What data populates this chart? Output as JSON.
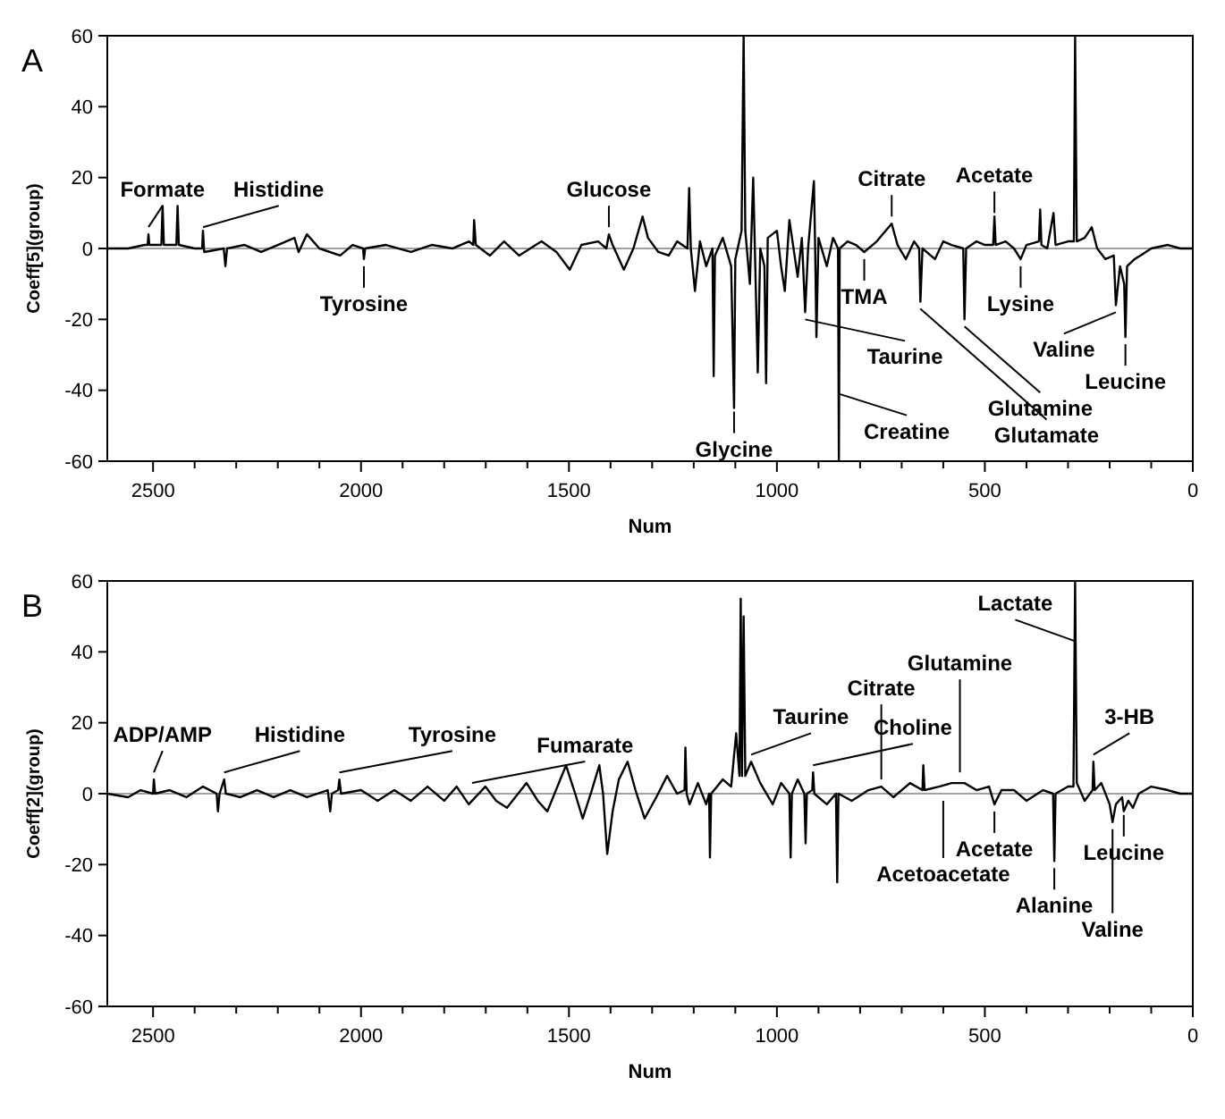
{
  "chart_data": [
    {
      "type": "line",
      "title": "A",
      "xlabel": "Num",
      "ylabel": "Coeff[5](group)",
      "xlim": [
        2610,
        0
      ],
      "ylim": [
        -60,
        60
      ],
      "xticks": [
        2500,
        {
          "value": 2400,
          "label": null
        },
        {
          "value": 2300,
          "label": null
        },
        {
          "value": 2200,
          "label": null
        },
        {
          "value": 2100,
          "label": null
        },
        2000,
        {
          "value": 1900,
          "label": null
        },
        {
          "value": 1800,
          "label": null
        },
        {
          "value": 1700,
          "label": null
        },
        {
          "value": 1600,
          "label": null
        },
        1500,
        {
          "value": 1400,
          "label": null
        },
        {
          "value": 1300,
          "label": null
        },
        {
          "value": 1200,
          "label": null
        },
        {
          "value": 1100,
          "label": null
        },
        1000,
        {
          "value": 900,
          "label": null
        },
        {
          "value": 800,
          "label": null
        },
        {
          "value": 700,
          "label": null
        },
        {
          "value": 600,
          "label": null
        },
        500,
        {
          "value": 400,
          "label": null
        },
        {
          "value": 300,
          "label": null
        },
        {
          "value": 200,
          "label": null
        },
        {
          "value": 100,
          "label": null
        },
        0
      ],
      "yticks": [
        -60,
        -40,
        -20,
        0,
        20,
        40,
        60
      ],
      "grid": false,
      "marker": "none",
      "line_style": "solid",
      "ref_lines": [
        {
          "axis": "y",
          "value": 0,
          "color": "#808080"
        }
      ],
      "series": [
        {
          "color": "#000000",
          "x": [
            2610,
            2560,
            2520,
            2513,
            2511,
            2509,
            2480,
            2477,
            2474,
            2444,
            2441,
            2438,
            2400,
            2382,
            2380,
            2377,
            2330,
            2326,
            2322,
            2280,
            2240,
            2200,
            2160,
            2150,
            2130,
            2100,
            2050,
            2020,
            1995,
            1993,
            1990,
            1940,
            1880,
            1830,
            1780,
            1740,
            1730,
            1728,
            1724,
            1690,
            1656,
            1620,
            1566,
            1530,
            1498,
            1470,
            1430,
            1410,
            1404,
            1395,
            1368,
            1345,
            1323,
            1310,
            1285,
            1260,
            1240,
            1215,
            1211,
            1207,
            1197,
            1185,
            1170,
            1155,
            1152,
            1149,
            1130,
            1110,
            1103,
            1100,
            1085,
            1080,
            1076,
            1065,
            1057,
            1052,
            1046,
            1040,
            1030,
            1026,
            1022,
            1000,
            990,
            981,
            970,
            950,
            940,
            932,
            925,
            911,
            908,
            905,
            900,
            880,
            865,
            853,
            851,
            849,
            830,
            810,
            790,
            760,
            724,
            710,
            690,
            670,
            658,
            655,
            650,
            620,
            600,
            580,
            552,
            549,
            545,
            520,
            500,
            480,
            477,
            474,
            450,
            430,
            414,
            400,
            370,
            367,
            364,
            350,
            335,
            330,
            300,
            286,
            283,
            279,
            260,
            243,
            230,
            210,
            190,
            185,
            175,
            165,
            162,
            158,
            140,
            126,
            100,
            60,
            30,
            0
          ],
          "values": [
            0,
            0,
            1,
            1,
            4,
            1,
            1,
            12,
            1,
            1,
            12,
            1,
            0,
            0,
            5,
            -1,
            0,
            -5,
            0,
            1,
            -1,
            1,
            3,
            -1,
            4,
            0,
            -2,
            1,
            0,
            -3,
            0,
            1,
            -1,
            1,
            0,
            2,
            1,
            8,
            1,
            -2,
            2,
            -2,
            2,
            -1,
            -6,
            1,
            2,
            0,
            4,
            1,
            -6,
            0,
            9,
            3,
            -1,
            -2,
            2,
            0,
            17,
            0,
            -12,
            2,
            -5,
            0,
            -36,
            -2,
            3,
            -5,
            -45,
            -3,
            5,
            60,
            5,
            -10,
            20,
            -5,
            -35,
            0,
            -5,
            -38,
            3,
            5,
            -5,
            -12,
            8,
            -8,
            3,
            -18,
            0,
            19,
            0,
            -25,
            3,
            -5,
            3,
            0,
            -60,
            0,
            2,
            1,
            -1,
            2,
            7,
            1,
            -3,
            2,
            0,
            -15,
            0,
            -3,
            2,
            1,
            0,
            -20,
            0,
            2,
            1,
            1,
            9,
            1,
            2,
            0,
            -3,
            1,
            2,
            11,
            1,
            0,
            10,
            1,
            2,
            2,
            60,
            2,
            3,
            6,
            0,
            -3,
            -2,
            -16,
            -5,
            -10,
            -25,
            -5,
            -3,
            -2,
            0,
            1,
            0,
            0
          ]
        }
      ],
      "annotations": [
        {
          "text": "Formate",
          "x": 2511,
          "y": 5
        },
        {
          "text": "Histidine",
          "x": 2380,
          "y": 5
        },
        {
          "text": "Glucose",
          "x": 1404,
          "y": 5
        },
        {
          "text": "Citrate",
          "x": 724,
          "y": 8
        },
        {
          "text": "Acetate",
          "x": 477,
          "y": 9
        },
        {
          "text": "Glycine",
          "x": 1103,
          "y": -45
        },
        {
          "text": "Creatine",
          "x": 851,
          "y": -40
        },
        {
          "text": "Leucine",
          "x": 162,
          "y": -26
        },
        {
          "text": "Valine",
          "x": 185,
          "y": -17
        },
        {
          "text": "Taurine",
          "x": 932,
          "y": -19
        },
        {
          "text": "Glutamine",
          "x": 549,
          "y": -21
        },
        {
          "text": "Glutamate",
          "x": 655,
          "y": -16
        },
        {
          "text": "TMA",
          "x": 790,
          "y": -2
        },
        {
          "text": "Lysine",
          "x": 414,
          "y": -4
        },
        {
          "text": "Tyrosine",
          "x": 1993,
          "y": -4
        }
      ]
    },
    {
      "type": "line",
      "title": "B",
      "xlabel": "Num",
      "ylabel": "Coeff[2](group)",
      "xlim": [
        2610,
        0
      ],
      "ylim": [
        -60,
        60
      ],
      "xticks": [
        2500,
        {
          "value": 2400,
          "label": null
        },
        {
          "value": 2300,
          "label": null
        },
        {
          "value": 2200,
          "label": null
        },
        {
          "value": 2100,
          "label": null
        },
        2000,
        {
          "value": 1900,
          "label": null
        },
        {
          "value": 1800,
          "label": null
        },
        {
          "value": 1700,
          "label": null
        },
        {
          "value": 1600,
          "label": null
        },
        1500,
        {
          "value": 1400,
          "label": null
        },
        {
          "value": 1300,
          "label": null
        },
        {
          "value": 1200,
          "label": null
        },
        {
          "value": 1100,
          "label": null
        },
        1000,
        {
          "value": 900,
          "label": null
        },
        {
          "value": 800,
          "label": null
        },
        {
          "value": 700,
          "label": null
        },
        {
          "value": 600,
          "label": null
        },
        500,
        {
          "value": 400,
          "label": null
        },
        {
          "value": 300,
          "label": null
        },
        {
          "value": 200,
          "label": null
        },
        {
          "value": 100,
          "label": null
        },
        0
      ],
      "yticks": [
        -60,
        -40,
        -20,
        0,
        20,
        40,
        60
      ],
      "grid": false,
      "marker": "none",
      "line_style": "solid",
      "ref_lines": [
        {
          "axis": "y",
          "value": 0,
          "color": "#808080"
        }
      ],
      "series": [
        {
          "color": "#000000",
          "x": [
            2610,
            2560,
            2530,
            2500,
            2498,
            2495,
            2460,
            2420,
            2380,
            2347,
            2344,
            2340,
            2329,
            2325,
            2290,
            2250,
            2210,
            2170,
            2130,
            2080,
            2074,
            2070,
            2055,
            2052,
            2048,
            2000,
            1960,
            1920,
            1880,
            1840,
            1800,
            1770,
            1741,
            1701,
            1675,
            1649,
            1602,
            1575,
            1552,
            1507,
            1485,
            1467,
            1445,
            1427,
            1418,
            1408,
            1395,
            1380,
            1359,
            1340,
            1318,
            1290,
            1264,
            1240,
            1222,
            1220,
            1217,
            1210,
            1190,
            1170,
            1163,
            1161,
            1158,
            1130,
            1110,
            1098,
            1090,
            1087,
            1084,
            1080,
            1076,
            1062,
            1040,
            1010,
            990,
            970,
            967,
            964,
            950,
            934,
            931,
            928,
            915,
            913,
            910,
            880,
            858,
            855,
            852,
            820,
            780,
            749,
            720,
            680,
            650,
            648,
            645,
            610,
            580,
            549,
            520,
            490,
            477,
            460,
            430,
            400,
            360,
            336,
            333,
            330,
            300,
            287,
            283,
            279,
            260,
            241,
            239,
            236,
            220,
            200,
            193,
            185,
            170,
            166,
            155,
            144,
            130,
            100,
            60,
            30,
            0
          ],
          "values": [
            0,
            -1,
            1,
            0,
            4,
            0,
            1,
            -1,
            2,
            0,
            -5,
            0,
            4,
            0,
            -1,
            1,
            -1,
            1,
            -1,
            1,
            -5,
            0,
            1,
            4,
            0,
            1,
            -2,
            1,
            -2,
            2,
            -2,
            2,
            -3,
            2,
            -2,
            -4,
            3,
            -2,
            -5,
            8,
            0,
            -7,
            1,
            8,
            0,
            -17,
            -5,
            4,
            9,
            1,
            -7,
            -1,
            5,
            0,
            1,
            13,
            0,
            -3,
            3,
            -3,
            0,
            -18,
            0,
            4,
            2,
            17,
            5,
            55,
            5,
            50,
            5,
            9,
            3,
            -3,
            3,
            0,
            -18,
            0,
            4,
            0,
            -14,
            0,
            1,
            6,
            0,
            -3,
            0,
            -25,
            0,
            -2,
            1,
            2,
            -1,
            3,
            1,
            8,
            1,
            2,
            3,
            3,
            1,
            2,
            -3,
            1,
            1,
            -2,
            1,
            0,
            -19,
            0,
            2,
            2,
            60,
            3,
            -2,
            1,
            9,
            1,
            3,
            -3,
            -8,
            -3,
            -1,
            -5,
            -2,
            -4,
            0,
            2,
            1,
            0,
            0
          ]
        }
      ],
      "annotations": [
        {
          "text": "Lactate",
          "x": 283,
          "y": 42
        },
        {
          "text": "ADP/AMP",
          "x": 2498,
          "y": 5
        },
        {
          "text": "Histidine",
          "x": 2329,
          "y": 5
        },
        {
          "text": "Tyrosine",
          "x": 2052,
          "y": 5
        },
        {
          "text": "Fumarate",
          "x": 1733,
          "y": 2
        },
        {
          "text": "Taurine",
          "x": 1062,
          "y": 10
        },
        {
          "text": "Choline",
          "x": 913,
          "y": 7
        },
        {
          "text": "Citrate",
          "x": 749,
          "y": 3
        },
        {
          "text": "Glutamine",
          "x": 560,
          "y": 5
        },
        {
          "text": "3-HB",
          "x": 239,
          "y": 10
        },
        {
          "text": "Alanine",
          "x": 333,
          "y": -20
        },
        {
          "text": "Leucine",
          "x": 166,
          "y": -5
        },
        {
          "text": "Valine",
          "x": 193,
          "y": -9
        },
        {
          "text": "Acetate",
          "x": 477,
          "y": -4
        },
        {
          "text": "Acetoacetate",
          "x": 600,
          "y": -1
        }
      ]
    }
  ]
}
